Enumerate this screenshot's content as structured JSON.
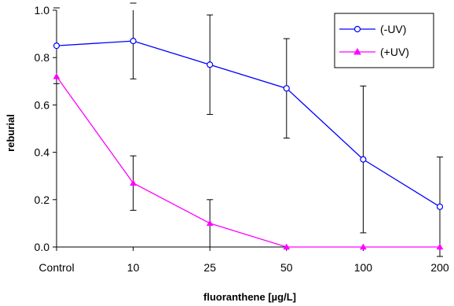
{
  "chart_data": {
    "type": "line",
    "categories": [
      "Control",
      "10",
      "25",
      "50",
      "100",
      "200"
    ],
    "xlabel": "fluoranthene [µg/L]",
    "ylabel": "reburial",
    "ylim": [
      0,
      1.0
    ],
    "yticks": [
      "0.0",
      "0.2",
      "0.4",
      "0.6",
      "0.8",
      "1.0"
    ],
    "grid": false,
    "legend_position": "top-right",
    "series": [
      {
        "name": "(-UV)",
        "color": "#0000ff",
        "marker": "open-circle",
        "values": [
          0.85,
          0.87,
          0.77,
          0.67,
          0.37,
          0.17
        ],
        "error": [
          0.16,
          0.16,
          0.21,
          0.21,
          0.31,
          0.21
        ]
      },
      {
        "name": "(+UV)",
        "color": "#ff00ff",
        "marker": "filled-triangle",
        "values": [
          0.72,
          0.27,
          0.1,
          0.0,
          0.0,
          0.0
        ],
        "error": [
          0.0,
          0.115,
          0.1,
          0.0,
          0.0,
          0.0
        ]
      }
    ]
  }
}
